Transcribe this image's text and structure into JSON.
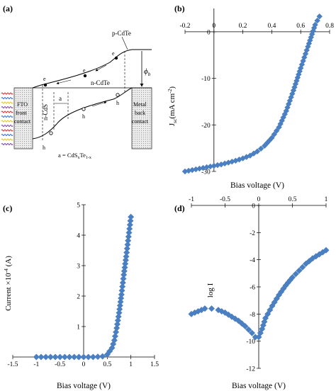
{
  "panels": {
    "a": {
      "label": "(a)",
      "texts": {
        "p_cdte": "p-CdTe",
        "n_cdte": "n-CdTe",
        "n_cds": "n-CdS",
        "a": "a",
        "fto_1": "FTO",
        "fto_2": "front",
        "fto_3": "contact",
        "metal_1": "Metal",
        "metal_2": "back",
        "metal_3": "contact",
        "phi": "ϕ",
        "phi_sub": "b",
        "a_eq_pre": "a = CdS",
        "a_eq_x": "x",
        "a_eq_te": "Te",
        "a_eq_1x": "1-x",
        "e": "e",
        "h": "h"
      },
      "colors": {
        "light_rays": [
          "#d62728",
          "#2f6fd6",
          "#e3c21a",
          "#7b3fb0"
        ]
      }
    }
  },
  "chart_data": [
    {
      "panel": "(b)",
      "type": "scatter",
      "xlabel": "Bias voltage (V)",
      "ylabel_parts": {
        "j": "J",
        "sub": "sc",
        "unit_pre": "(mA cm",
        "sup": "-2",
        "unit_post": ")"
      },
      "xlim": [
        -0.2,
        0.8
      ],
      "ylim": [
        -30,
        5
      ],
      "xticks": [
        -0.2,
        0,
        0.2,
        0.4,
        0.6,
        0.8
      ],
      "xtick_labels": [
        "-0.2",
        "0",
        "0.2",
        "0.4",
        "0.6",
        "0.8"
      ],
      "yticks": [
        -30,
        -20,
        -10,
        0
      ],
      "ytick_labels": [
        "-30",
        "-20",
        "-10",
        "0"
      ],
      "grid": false,
      "marker": "diamond",
      "color": "#4a7fc1",
      "x": [
        -0.2,
        -0.15,
        -0.1,
        -0.05,
        0,
        0.05,
        0.1,
        0.15,
        0.2,
        0.25,
        0.3,
        0.35,
        0.4,
        0.45,
        0.5,
        0.55,
        0.6,
        0.65,
        0.7,
        0.73
      ],
      "y": [
        -30,
        -29.7,
        -29.4,
        -29.1,
        -28.8,
        -28.5,
        -28.1,
        -27.7,
        -27.2,
        -26.6,
        -25.7,
        -24.5,
        -22.8,
        -20.5,
        -17,
        -12.6,
        -7.8,
        -3.2,
        1.5,
        3.3
      ]
    },
    {
      "panel": "(c)",
      "type": "scatter",
      "xlabel": "Bias voltage (V)",
      "ylabel_parts": {
        "pre": "Current ×10",
        "sup": "-4",
        "post": " (A)"
      },
      "xlim": [
        -1.5,
        1.5
      ],
      "ylim": [
        0,
        5
      ],
      "xticks": [
        -1.5,
        -1,
        -0.5,
        0,
        0.5,
        1,
        1.5
      ],
      "xtick_labels": [
        "-1.5",
        "-1",
        "-0.5",
        "0",
        "0.5",
        "1",
        "1.5"
      ],
      "yticks": [
        0,
        1,
        2,
        3,
        4,
        5
      ],
      "ytick_labels": [
        "0",
        "1",
        "2",
        "3",
        "4",
        "5"
      ],
      "grid": false,
      "marker": "diamond",
      "color": "#4a7fc1",
      "x": [
        -1,
        -0.8,
        -0.6,
        -0.4,
        -0.2,
        0,
        0.2,
        0.4,
        0.5,
        0.6,
        0.65,
        0.7,
        0.75,
        0.8,
        0.85,
        0.9,
        0.95,
        1
      ],
      "y": [
        0,
        0,
        0,
        0,
        0,
        0,
        0,
        0.02,
        0.08,
        0.3,
        0.55,
        0.95,
        1.45,
        2.05,
        2.7,
        3.3,
        3.95,
        4.6
      ]
    },
    {
      "panel": "(d)",
      "type": "scatter",
      "xlabel": "Bias voltage (V)",
      "ylabel": "log I",
      "xlim": [
        -1,
        1
      ],
      "ylim": [
        -12,
        0
      ],
      "xticks": [
        -1,
        -0.5,
        0,
        0.5,
        1
      ],
      "xtick_labels": [
        "-1",
        "-0.5",
        "0",
        "0.5",
        "1"
      ],
      "yticks": [
        -12,
        -10,
        -8,
        -6,
        -4,
        -2,
        0
      ],
      "ytick_labels": [
        "-12",
        "-10",
        "-8",
        "-6",
        "-4",
        "-2",
        "0"
      ],
      "grid": false,
      "marker": "diamond",
      "color": "#4a7fc1",
      "x": [
        -1,
        -0.9,
        -0.8,
        -0.7,
        -0.6,
        -0.5,
        -0.4,
        -0.3,
        -0.2,
        -0.1,
        -0.05,
        0,
        0.05,
        0.1,
        0.2,
        0.3,
        0.4,
        0.5,
        0.6,
        0.7,
        0.8,
        0.9,
        1
      ],
      "y": [
        -8,
        -7.8,
        -7.6,
        -7.6,
        -7.7,
        -7.9,
        -8.2,
        -8.5,
        -8.9,
        -9.4,
        -9.7,
        -9.7,
        -9.1,
        -8.3,
        -7.4,
        -6.6,
        -5.9,
        -5.3,
        -4.8,
        -4.3,
        -3.9,
        -3.6,
        -3.3
      ]
    }
  ]
}
